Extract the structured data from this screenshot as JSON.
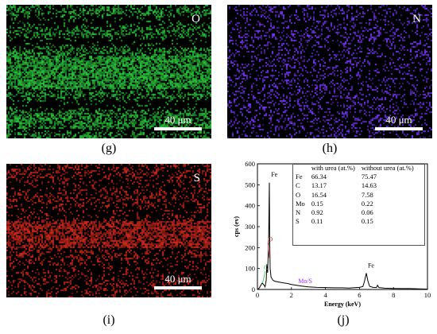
{
  "panels": {
    "g": {
      "caption": "(g)",
      "element": "O",
      "scale_label": "40 μm",
      "color": "#2ecc40"
    },
    "h": {
      "caption": "(h)",
      "element": "N",
      "scale_label": "40 μm",
      "color": "#7a3cff"
    },
    "i": {
      "caption": "(i)",
      "element": "S",
      "scale_label": "40 μm",
      "color": "#d62b1e"
    },
    "j": {
      "caption": "(j)"
    }
  },
  "chart_data": {
    "type": "line",
    "xlabel": "Energy (keV)",
    "ylabel": "cps (ev)",
    "xlim": [
      0,
      10
    ],
    "ylim": [
      0,
      600
    ],
    "xticks": [
      0,
      2,
      4,
      6,
      8,
      10
    ],
    "yticks": [
      0,
      100,
      200,
      300,
      400,
      500,
      600
    ],
    "series": [
      {
        "x": [
          0.0,
          0.1,
          0.2,
          0.27,
          0.35,
          0.45,
          0.52,
          0.55,
          0.6,
          0.66,
          0.7,
          0.72,
          0.75,
          0.8,
          0.9,
          1.0,
          1.2,
          1.5,
          1.8,
          2.0,
          2.3,
          2.6,
          3.0,
          3.5,
          4.0,
          4.5,
          5.0,
          5.4,
          5.6,
          6.0,
          6.2,
          6.3,
          6.4,
          6.5,
          6.6,
          6.8,
          7.0,
          7.06,
          7.15,
          7.5,
          8.0,
          8.5,
          9.0,
          9.5,
          10.0
        ],
        "y": [
          0,
          6,
          20,
          30,
          25,
          12,
          45,
          120,
          80,
          230,
          510,
          250,
          100,
          60,
          45,
          40,
          36,
          32,
          28,
          24,
          20,
          16,
          12,
          10,
          9,
          8,
          8,
          7,
          8,
          10,
          14,
          40,
          78,
          40,
          15,
          10,
          9,
          20,
          9,
          6,
          5,
          4,
          4,
          3,
          2
        ]
      }
    ],
    "annotations": [
      {
        "text": "Fe",
        "x": 0.71,
        "y": 540,
        "color": "#000000"
      },
      {
        "text": "O",
        "x": 0.53,
        "y": 230,
        "color": "#d62b1e"
      },
      {
        "text": "C",
        "x": 0.28,
        "y": 95,
        "color": "#2ecc40"
      },
      {
        "text": "Mo/S",
        "x": 2.3,
        "y": 30,
        "color": "#9b30ff"
      },
      {
        "text": "Fe",
        "x": 6.4,
        "y": 105,
        "color": "#000000"
      }
    ],
    "table": {
      "headers": [
        "",
        "with urea (at.%)",
        "without urea (at.%)"
      ],
      "rows": [
        [
          "Fe",
          "66.34",
          "75.47"
        ],
        [
          "C",
          "13.17",
          "14.63"
        ],
        [
          "O",
          "16.54",
          "7.58"
        ],
        [
          "Mo",
          "0.15",
          "0.22"
        ],
        [
          "N",
          "0.92",
          "0.06"
        ],
        [
          "S",
          "0.11",
          "0.15"
        ]
      ]
    }
  }
}
